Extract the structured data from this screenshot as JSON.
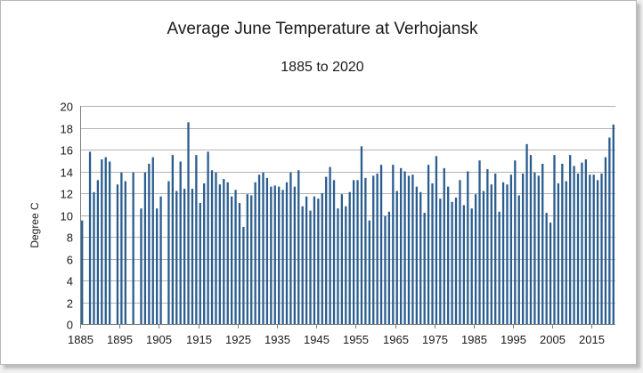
{
  "chart_data": {
    "type": "bar",
    "title": "Average June Temperature at Verhojansk",
    "subtitle": "1885 to 2020",
    "xlabel": "",
    "ylabel": "Degree C",
    "ylim": [
      0,
      20
    ],
    "ytick_step": 2,
    "yticks": [
      "0",
      "2",
      "4",
      "6",
      "8",
      "10",
      "12",
      "14",
      "16",
      "18",
      "20"
    ],
    "xticks": [
      "1885",
      "1895",
      "1905",
      "1915",
      "1925",
      "1935",
      "1945",
      "1955",
      "1965",
      "1975",
      "1985",
      "1995",
      "2005",
      "2015"
    ],
    "grid": "horizontal",
    "bar_color": "#2a5d8f",
    "first_year": 1885,
    "last_year": 2020,
    "values": [
      9.5,
      0,
      15.8,
      12.1,
      13.2,
      15.1,
      15.3,
      14.9,
      0,
      12.8,
      13.9,
      13.1,
      0,
      13.9,
      0,
      10.6,
      13.9,
      14.7,
      15.3,
      10.6,
      11.7,
      0,
      13.1,
      15.5,
      12.2,
      14.9,
      12.4,
      18.5,
      12.4,
      15.5,
      11.1,
      12.9,
      15.8,
      14.1,
      13.9,
      12.8,
      13.3,
      13.0,
      11.7,
      12.3,
      11.1,
      8.9,
      11.9,
      11.8,
      13.0,
      13.7,
      13.9,
      13.4,
      12.6,
      12.7,
      12.6,
      12.3,
      13.0,
      13.9,
      12.6,
      14.1,
      10.8,
      11.7,
      10.4,
      11.7,
      11.5,
      12.0,
      13.5,
      14.4,
      13.2,
      10.6,
      11.9,
      10.8,
      12.1,
      13.2,
      13.2,
      16.3,
      13.4,
      9.5,
      13.6,
      13.8,
      14.6,
      9.9,
      10.3,
      14.6,
      12.2,
      14.3,
      14.0,
      13.6,
      13.7,
      12.6,
      12.1,
      10.2,
      14.6,
      12.9,
      15.4,
      11.5,
      14.3,
      12.6,
      11.2,
      11.6,
      13.2,
      10.9,
      14.0,
      10.6,
      11.9,
      15.0,
      12.2,
      14.2,
      12.8,
      13.8,
      10.3,
      13.0,
      12.8,
      13.7,
      15.0,
      11.8,
      13.8,
      16.5,
      15.5,
      13.9,
      13.6,
      14.7,
      10.2,
      9.3,
      15.5,
      12.9,
      14.7,
      13.1,
      15.5,
      14.5,
      13.8,
      14.8,
      15.1,
      13.7,
      13.7,
      13.2,
      13.8,
      15.3,
      17.1,
      18.3
    ]
  }
}
